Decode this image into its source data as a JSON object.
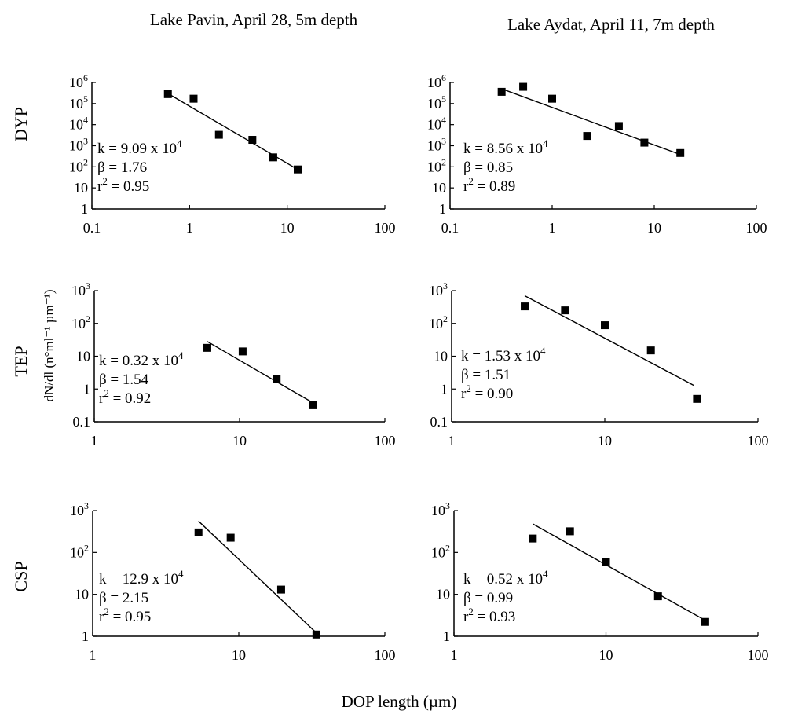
{
  "figure": {
    "col_titles": [
      "Lake Pavin, April 28, 5m depth",
      "Lake Aydat, April 11, 7m depth"
    ],
    "row_labels": [
      "DYP",
      "TEP",
      "CSP"
    ],
    "ylabel": "dN/dl (n°ml⁻¹ µm⁻¹)",
    "xlabel": "DOP length (µm)"
  },
  "chart_data": [
    {
      "type": "scatter",
      "panel": "DYP - Lake Pavin",
      "x_scale": "log",
      "y_scale": "log",
      "xlim": [
        0.1,
        100
      ],
      "ylim": [
        1,
        1000000
      ],
      "x_ticks": [
        0.1,
        1,
        10,
        100
      ],
      "y_ticks": [
        1,
        10,
        100,
        1000,
        10000,
        100000,
        1000000
      ],
      "points": [
        [
          0.6,
          280000
        ],
        [
          1.1,
          170000
        ],
        [
          2.0,
          3300
        ],
        [
          4.4,
          1900
        ],
        [
          7.2,
          280
        ],
        [
          12.8,
          75
        ]
      ],
      "fit": [
        [
          0.6,
          300000
        ],
        [
          12.8,
          75
        ]
      ],
      "annotations": [
        {
          "base": "k = 9.09 x 10",
          "sup": "4"
        },
        {
          "base": "β = 1.76",
          "sup": ""
        },
        {
          "base": "r",
          "sup": "2",
          "tail": " = 0.95"
        }
      ]
    },
    {
      "type": "scatter",
      "panel": "DYP - Lake Aydat",
      "x_scale": "log",
      "y_scale": "log",
      "xlim": [
        0.1,
        100
      ],
      "ylim": [
        1,
        1000000
      ],
      "x_ticks": [
        0.1,
        1,
        10,
        100
      ],
      "y_ticks": [
        1,
        10,
        100,
        1000,
        10000,
        100000,
        1000000
      ],
      "points": [
        [
          0.32,
          360000
        ],
        [
          0.52,
          620000
        ],
        [
          1.0,
          170000
        ],
        [
          2.2,
          2900
        ],
        [
          4.5,
          8600
        ],
        [
          8.0,
          1400
        ],
        [
          18.0,
          450
        ]
      ],
      "fit": [
        [
          0.32,
          500000
        ],
        [
          18.0,
          380
        ]
      ],
      "annotations": [
        {
          "base": "k = 8.56 x 10",
          "sup": "4"
        },
        {
          "base": "β = 0.85",
          "sup": ""
        },
        {
          "base": "r",
          "sup": "2",
          "tail": " = 0.89"
        }
      ]
    },
    {
      "type": "scatter",
      "panel": "TEP - Lake Pavin",
      "x_scale": "log",
      "y_scale": "log",
      "xlim": [
        1,
        100
      ],
      "ylim": [
        0.1,
        1000
      ],
      "x_ticks": [
        1,
        10,
        100
      ],
      "y_ticks": [
        0.1,
        1,
        10,
        100,
        1000
      ],
      "points": [
        [
          6.0,
          18
        ],
        [
          10.5,
          14
        ],
        [
          18.0,
          2.0
        ],
        [
          32.0,
          0.32
        ]
      ],
      "fit": [
        [
          6.0,
          28
        ],
        [
          32.0,
          0.38
        ]
      ],
      "annotations": [
        {
          "base": "k = 0.32 x 10",
          "sup": "4"
        },
        {
          "base": "β = 1.54",
          "sup": ""
        },
        {
          "base": "r",
          "sup": "2",
          "tail": " = 0.92"
        }
      ]
    },
    {
      "type": "scatter",
      "panel": "TEP - Lake Aydat",
      "x_scale": "log",
      "y_scale": "log",
      "xlim": [
        1,
        100
      ],
      "ylim": [
        0.1,
        1000
      ],
      "x_ticks": [
        1,
        10,
        100
      ],
      "y_ticks": [
        0.1,
        1,
        10,
        100,
        1000
      ],
      "points": [
        [
          3.0,
          330
        ],
        [
          5.5,
          250
        ],
        [
          10.0,
          88
        ],
        [
          20.0,
          15
        ],
        [
          40.0,
          0.5
        ]
      ],
      "fit": [
        [
          3.0,
          700
        ],
        [
          38.0,
          1.3
        ]
      ],
      "annotations": [
        {
          "base": "k = 1.53 x 10",
          "sup": "4"
        },
        {
          "base": "β = 1.51",
          "sup": ""
        },
        {
          "base": "r",
          "sup": "2",
          "tail": " = 0.90"
        }
      ]
    },
    {
      "type": "scatter",
      "panel": "CSP - Lake Pavin",
      "x_scale": "log",
      "y_scale": "log",
      "xlim": [
        1,
        100
      ],
      "ylim": [
        1,
        1000
      ],
      "x_ticks": [
        1,
        10,
        100
      ],
      "y_ticks": [
        1,
        10,
        100,
        1000
      ],
      "points": [
        [
          5.3,
          300
        ],
        [
          8.8,
          225
        ],
        [
          19.5,
          13
        ],
        [
          34.0,
          1.1
        ]
      ],
      "fit": [
        [
          5.3,
          560
        ],
        [
          34.0,
          1.2
        ]
      ],
      "annotations": [
        {
          "base": "k = 12.9 x 10",
          "sup": "4"
        },
        {
          "base": "β = 2.15",
          "sup": ""
        },
        {
          "base": "r",
          "sup": "2",
          "tail": " = 0.95"
        }
      ]
    },
    {
      "type": "scatter",
      "panel": "CSP - Lake Aydat",
      "x_scale": "log",
      "y_scale": "log",
      "xlim": [
        1,
        100
      ],
      "ylim": [
        1,
        1000
      ],
      "x_ticks": [
        1,
        10,
        100
      ],
      "y_ticks": [
        1,
        10,
        100,
        1000
      ],
      "points": [
        [
          3.3,
          215
        ],
        [
          5.8,
          320
        ],
        [
          10.0,
          60
        ],
        [
          22.0,
          9.0
        ],
        [
          45.0,
          2.2
        ]
      ],
      "fit": [
        [
          3.3,
          480
        ],
        [
          45.0,
          2.4
        ]
      ],
      "annotations": [
        {
          "base": "k = 0.52 x 10",
          "sup": "4"
        },
        {
          "base": "β = 0.99",
          "sup": ""
        },
        {
          "base": "r",
          "sup": "2",
          "tail": " = 0.93"
        }
      ]
    }
  ]
}
